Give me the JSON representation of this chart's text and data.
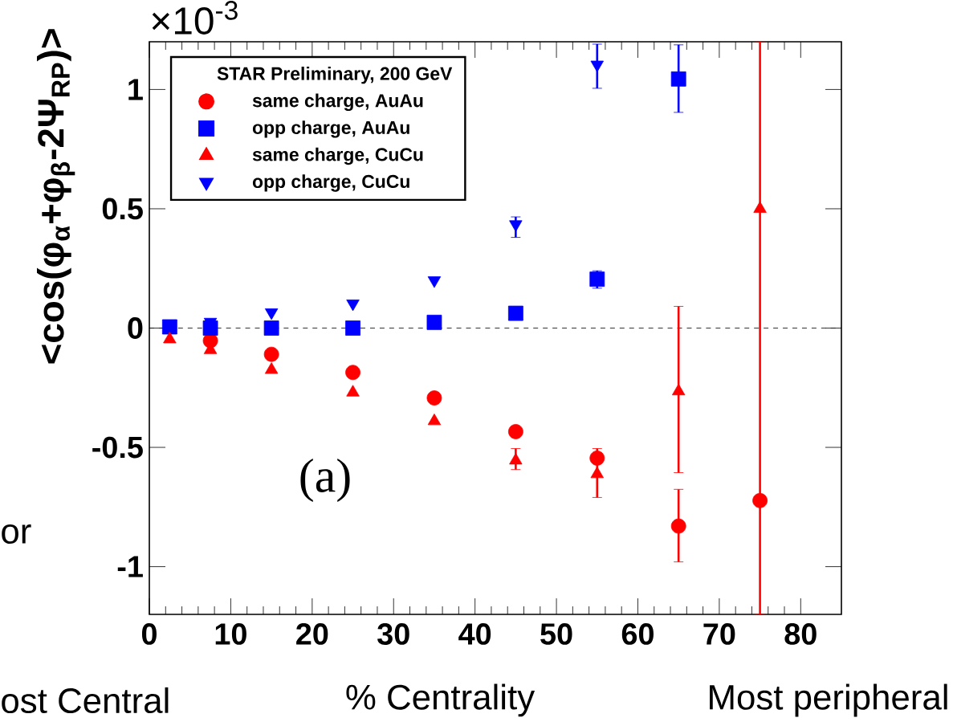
{
  "chart_data": {
    "type": "scatter",
    "ylabel": "<cos(φ$_{α}$+φ$_{β}$-2Ψ$_{RP}$)>",
    "xlabel": "% Centrality",
    "legend_title": "STAR Preliminary, 200 GeV",
    "legend": "top left",
    "annotations": [
      "×10$^{-3}$",
      "(a)",
      "ost Central",
      "Most peripheral",
      "or"
    ],
    "x": [
      2.5,
      7.5,
      15,
      25,
      35,
      45,
      55,
      65,
      75
    ],
    "series": [
      {
        "name": "same charge, AuAu",
        "color": "#ff0000",
        "marker": "circle",
        "values": [
          null,
          -0.053,
          -0.11,
          -0.186,
          -0.293,
          -0.434,
          -0.545,
          -0.83,
          -0.723
        ],
        "errors": [
          null,
          null,
          null,
          null,
          null,
          null,
          null,
          [
            -0.98,
            -0.676
          ],
          null
        ]
      },
      {
        "name": "opp charge, AuAu",
        "color": "#0000ff",
        "marker": "square",
        "values": [
          0.005,
          0.0,
          0.0,
          0.0,
          0.024,
          0.062,
          0.205,
          1.044,
          null
        ],
        "errors": [
          null,
          null,
          null,
          null,
          null,
          null,
          [
            0.167,
            0.24
          ],
          [
            0.904,
            1.187
          ],
          null
        ]
      },
      {
        "name": "same charge, CuCu",
        "color": "#ff0000",
        "marker": "triangle",
        "values": [
          -0.047,
          -0.092,
          -0.175,
          -0.27,
          -0.39,
          -0.555,
          -0.612,
          -0.265,
          0.5
        ],
        "errors": [
          null,
          null,
          null,
          null,
          null,
          [
            -0.593,
            -0.505
          ],
          [
            -0.71,
            -0.505
          ],
          [
            -0.606,
            0.091
          ],
          [
            -1.2,
            1.2
          ]
        ]
      },
      {
        "name": "opp charge, CuCu",
        "color": "#0000ff",
        "marker": "triangle-down",
        "values": [
          null,
          0.026,
          0.066,
          0.103,
          0.2,
          0.435,
          1.104,
          null,
          null
        ],
        "errors": [
          null,
          null,
          null,
          null,
          null,
          [
            0.38,
            0.466
          ],
          [
            1.005,
            1.19
          ],
          null,
          null
        ]
      }
    ],
    "xlim": [
      0,
      85
    ],
    "ylim": [
      -1.2,
      1.2
    ],
    "xticks": [
      0,
      10,
      20,
      30,
      40,
      50,
      60,
      70,
      80
    ],
    "yticks": [
      -1,
      -0.5,
      0,
      0.5,
      1
    ],
    "ref_lines": [
      {
        "axis": "y",
        "value": 0,
        "line_style": "dashed",
        "color": "#000000"
      }
    ]
  }
}
